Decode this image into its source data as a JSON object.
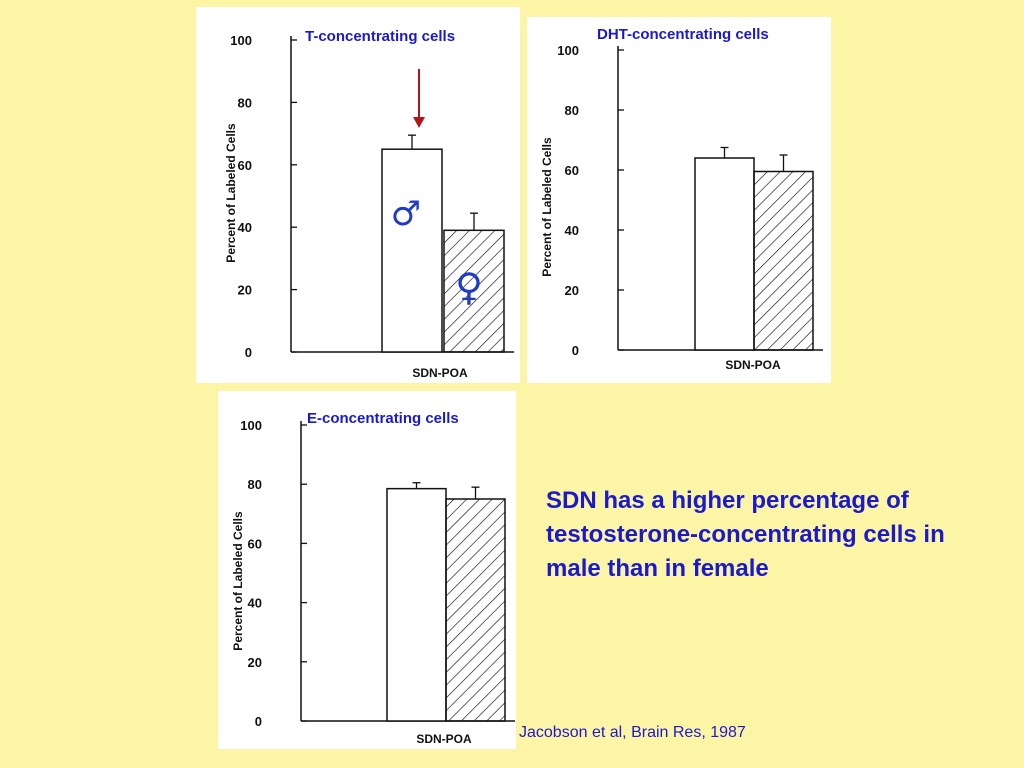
{
  "colors": {
    "background": "#fdf5a6",
    "text_blue": "#1a1acc",
    "arrow_red": "#b01818",
    "symbol_blue": "#1e3cc8"
  },
  "symbols": {
    "male": "♂",
    "female": "♀"
  },
  "summary_text": "SDN has a higher percentage of testosterone-concentrating cells in male than in female",
  "citation": "Jacobson et al, Brain Res, 1987",
  "chart_data": [
    {
      "type": "bar",
      "title": "T-concentrating cells",
      "ylabel": "Percent of Labeled Cells",
      "xlabel": "SDN-POA",
      "ylim": [
        0,
        100
      ],
      "yticks": [
        "0",
        "20",
        "40",
        "60",
        "80",
        "100"
      ],
      "series": [
        {
          "values": [
            65
          ],
          "error": [
            4.5
          ],
          "fill": "white"
        },
        {
          "values": [
            39
          ],
          "error": [
            5.5
          ],
          "fill": "hatched"
        }
      ],
      "annotations": [
        "red arrow pointing down at male bar",
        "male symbol on first bar",
        "female symbol on second bar"
      ]
    },
    {
      "type": "bar",
      "title": "DHT-concentrating cells",
      "ylabel": "Percent of Labeled Cells",
      "xlabel": "SDN-POA",
      "ylim": [
        0,
        100
      ],
      "yticks": [
        "0",
        "20",
        "40",
        "60",
        "80",
        "100"
      ],
      "series": [
        {
          "values": [
            64
          ],
          "error": [
            3.5
          ],
          "fill": "white"
        },
        {
          "values": [
            59.5
          ],
          "error": [
            5.5
          ],
          "fill": "hatched"
        }
      ]
    },
    {
      "type": "bar",
      "title": "E-concentrating cells",
      "ylabel": "Percent of Labeled Cells",
      "xlabel": "SDN-POA",
      "ylim": [
        0,
        100
      ],
      "yticks": [
        "0",
        "20",
        "40",
        "60",
        "80",
        "100"
      ],
      "series": [
        {
          "values": [
            78.5
          ],
          "error": [
            2
          ],
          "fill": "white"
        },
        {
          "values": [
            75
          ],
          "error": [
            4
          ],
          "fill": "hatched"
        }
      ]
    }
  ]
}
